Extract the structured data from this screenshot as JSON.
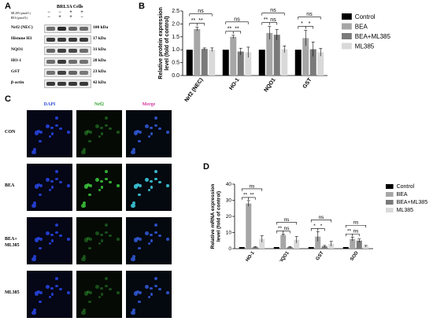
{
  "panel_letters": {
    "a": "A",
    "b": "B",
    "c": "C",
    "d": "D"
  },
  "western_blot": {
    "cell_line": "BRL3A Cells",
    "treatments": [
      {
        "label": "ML385 (μmol/L)",
        "signs": [
          "−",
          "−",
          "+",
          "+"
        ]
      },
      {
        "label": "BEA (μmol/L)",
        "signs": [
          "−",
          "+",
          "+",
          "−"
        ]
      }
    ],
    "bands": [
      {
        "name": "Nrf2 (NEC)",
        "kda": "100 kDa",
        "intensity": [
          0.55,
          1.0,
          0.6,
          0.55
        ]
      },
      {
        "name": "Histone H3",
        "kda": "17 kDa",
        "intensity": [
          0.9,
          0.9,
          0.9,
          0.9
        ]
      },
      {
        "name": "NQO1",
        "kda": "31 kDa",
        "intensity": [
          0.6,
          0.85,
          0.8,
          0.55
        ]
      },
      {
        "name": "HO-1",
        "kda": "28 kDa",
        "intensity": [
          0.55,
          0.9,
          0.55,
          0.5
        ]
      },
      {
        "name": "GST",
        "kda": "23 kDa",
        "intensity": [
          0.5,
          0.85,
          0.6,
          0.45
        ]
      },
      {
        "name": "β-actin",
        "kda": "42 kDa",
        "intensity": [
          0.9,
          0.9,
          0.9,
          0.9
        ]
      }
    ]
  },
  "microscopy": {
    "columns": [
      {
        "label": "DAPI",
        "color": "#2d4bd6"
      },
      {
        "label": "Nrf2",
        "color": "#2ca02c"
      },
      {
        "label": "Merge",
        "color": "#d4349a"
      }
    ],
    "rows": [
      {
        "label": "CON",
        "green_level": 0.35
      },
      {
        "label": "BEA",
        "green_level": 1.0
      },
      {
        "label": "BEA+\nML385",
        "green_level": 0.3
      },
      {
        "label": "ML385",
        "green_level": 0.3
      }
    ]
  },
  "chart_data": [
    {
      "panel": "B",
      "type": "bar",
      "ylabel": "Relative protein expression level (fold of control)",
      "ylim": [
        0,
        2.5
      ],
      "yticks": [
        0.0,
        0.5,
        1.0,
        1.5,
        2.0,
        2.5
      ],
      "categories": [
        "Nrf2 (NEC)",
        "HO-1",
        "NQO1",
        "GST"
      ],
      "series": [
        {
          "name": "Control",
          "color": "#000000",
          "values": [
            1.0,
            1.0,
            1.0,
            1.0
          ],
          "errors": [
            0,
            0,
            0,
            0
          ]
        },
        {
          "name": "BEA",
          "color": "#a6a6a6",
          "values": [
            1.8,
            1.5,
            1.65,
            1.45
          ],
          "errors": [
            0.07,
            0.06,
            0.25,
            0.3
          ]
        },
        {
          "name": "BEA+ML385",
          "color": "#7a7a7a",
          "values": [
            1.03,
            0.93,
            1.58,
            1.02
          ],
          "errors": [
            0.04,
            0.13,
            0.2,
            0.28
          ]
        },
        {
          "name": "ML385",
          "color": "#d9d9d9",
          "values": [
            1.0,
            0.9,
            1.02,
            0.9
          ],
          "errors": [
            0.07,
            0.2,
            0.13,
            0.15
          ]
        }
      ],
      "annotations": [
        {
          "cat": 0,
          "from": 0,
          "to": 1,
          "text": "**",
          "level": 0
        },
        {
          "cat": 0,
          "from": 1,
          "to": 2,
          "text": "**",
          "level": 0
        },
        {
          "cat": 0,
          "from": 0,
          "to": 3,
          "text": "ns",
          "level": 1
        },
        {
          "cat": 1,
          "from": 0,
          "to": 1,
          "text": "**",
          "level": 0
        },
        {
          "cat": 1,
          "from": 1,
          "to": 2,
          "text": "**",
          "level": 0
        },
        {
          "cat": 1,
          "from": 0,
          "to": 3,
          "text": "ns",
          "level": 1
        },
        {
          "cat": 2,
          "from": 0,
          "to": 1,
          "text": "**",
          "level": 0
        },
        {
          "cat": 2,
          "from": 1,
          "to": 2,
          "text": "ns",
          "level": 0
        },
        {
          "cat": 2,
          "from": 0,
          "to": 3,
          "text": "ns",
          "level": 1
        },
        {
          "cat": 3,
          "from": 0,
          "to": 1,
          "text": "*",
          "level": 0
        },
        {
          "cat": 3,
          "from": 1,
          "to": 2,
          "text": "*",
          "level": 0
        },
        {
          "cat": 3,
          "from": 0,
          "to": 3,
          "text": "ns",
          "level": 1
        }
      ],
      "legend_position": "right"
    },
    {
      "panel": "D",
      "type": "bar",
      "ylabel": "Relative mRNA expression level (fold of control)",
      "ylim": [
        0,
        40
      ],
      "yticks": [
        0,
        10,
        20,
        30,
        40
      ],
      "categories": [
        "HO-1",
        "NQO1",
        "GST",
        "SOD"
      ],
      "series": [
        {
          "name": "Control",
          "color": "#000000",
          "values": [
            1.0,
            1.0,
            1.0,
            1.0
          ],
          "errors": [
            0,
            0,
            0,
            0
          ]
        },
        {
          "name": "BEA",
          "color": "#a6a6a6",
          "values": [
            28.0,
            8.5,
            7.5,
            6.0
          ],
          "errors": [
            1.8,
            0.5,
            3.0,
            1.2
          ]
        },
        {
          "name": "BEA+ML385",
          "color": "#7a7a7a",
          "values": [
            1.0,
            1.0,
            1.5,
            5.0
          ],
          "errors": [
            0.3,
            0.3,
            0.5,
            1.0
          ]
        },
        {
          "name": "ML385",
          "color": "#d9d9d9",
          "values": [
            6.0,
            5.5,
            3.0,
            1.5
          ],
          "errors": [
            2.0,
            2.0,
            1.5,
            0.5
          ]
        }
      ],
      "annotations": [
        {
          "cat": 0,
          "from": 0,
          "to": 1,
          "text": "**",
          "level": 0
        },
        {
          "cat": 0,
          "from": 1,
          "to": 2,
          "text": "**",
          "level": 0
        },
        {
          "cat": 0,
          "from": 0,
          "to": 3,
          "text": "ns",
          "level": 1
        },
        {
          "cat": 1,
          "from": 0,
          "to": 1,
          "text": "**",
          "level": 0
        },
        {
          "cat": 1,
          "from": 1,
          "to": 2,
          "text": "ns",
          "level": 0
        },
        {
          "cat": 1,
          "from": 0,
          "to": 3,
          "text": "ns",
          "level": 1
        },
        {
          "cat": 2,
          "from": 0,
          "to": 1,
          "text": "*",
          "level": 0
        },
        {
          "cat": 2,
          "from": 1,
          "to": 2,
          "text": "*",
          "level": 0
        },
        {
          "cat": 2,
          "from": 0,
          "to": 3,
          "text": "ns",
          "level": 1
        },
        {
          "cat": 3,
          "from": 0,
          "to": 1,
          "text": "**",
          "level": 0
        },
        {
          "cat": 3,
          "from": 1,
          "to": 2,
          "text": "ns",
          "level": 0
        },
        {
          "cat": 3,
          "from": 0,
          "to": 3,
          "text": "ns",
          "level": 1
        }
      ],
      "legend_position": "right"
    }
  ]
}
